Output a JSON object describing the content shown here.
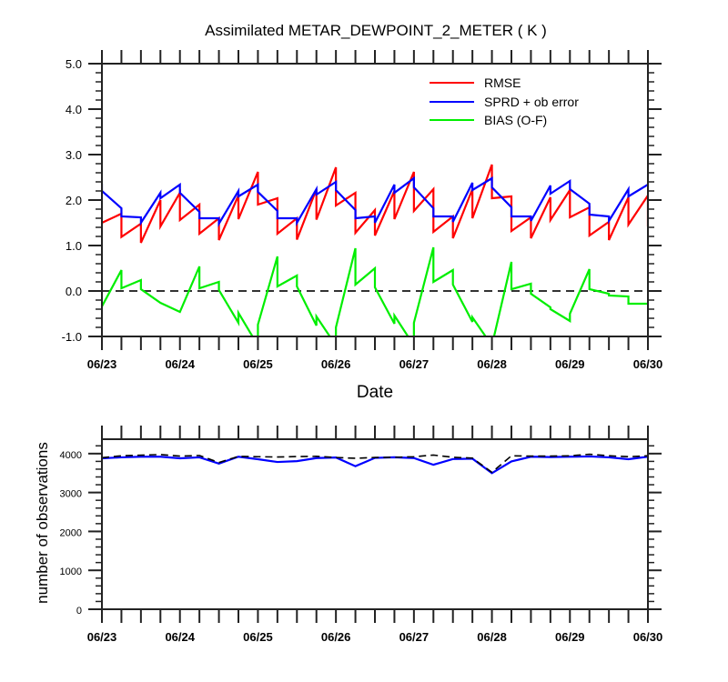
{
  "chart_data": [
    {
      "type": "line",
      "title": "Assimilated METAR_DEWPOINT_2_METER ( K )",
      "xlabel": "Date",
      "ylabel": "",
      "time_step_hours": 6,
      "xtick_labels": [
        "06/23",
        "06/24",
        "06/25",
        "06/26",
        "06/27",
        "06/28",
        "06/29",
        "06/30"
      ],
      "ytick_labels": [
        "5.0",
        "4.0",
        "3.0",
        "2.0",
        "1.0",
        "0.0",
        "-1.0"
      ],
      "ytick_values": [
        5,
        4,
        3,
        2,
        1,
        0,
        -1
      ],
      "ylim": [
        -1,
        5
      ],
      "reference_line": 0,
      "legend_position": "top-right",
      "series": [
        {
          "name": "RMSE",
          "color": "#ff0000",
          "values": [
            [
              1.5,
              1.5
            ],
            [
              1.7,
              1.19
            ],
            [
              1.48,
              1.06
            ],
            [
              2.0,
              1.42
            ],
            [
              2.16,
              1.56
            ],
            [
              1.9,
              1.26
            ],
            [
              1.6,
              1.12
            ],
            [
              2.1,
              1.58
            ],
            [
              2.62,
              1.9
            ],
            [
              2.04,
              1.26
            ],
            [
              1.6,
              1.13
            ],
            [
              2.24,
              1.57
            ],
            [
              2.72,
              1.88
            ],
            [
              2.16,
              1.28
            ],
            [
              1.78,
              1.22
            ],
            [
              2.2,
              1.58
            ],
            [
              2.62,
              1.76
            ],
            [
              2.24,
              1.3
            ],
            [
              1.64,
              1.16
            ],
            [
              2.24,
              1.6
            ],
            [
              2.78,
              2.04
            ],
            [
              2.08,
              1.32
            ],
            [
              1.62,
              1.16
            ],
            [
              2.06,
              1.56
            ],
            [
              2.22,
              1.62
            ],
            [
              1.84,
              1.22
            ],
            [
              1.52,
              1.12
            ],
            [
              2.06,
              1.46
            ],
            [
              2.1,
              1.42
            ]
          ]
        },
        {
          "name": "SPRD + ob error",
          "color": "#0000ff",
          "values": [
            [
              2.36,
              2.2
            ],
            [
              1.82,
              1.64
            ],
            [
              1.62,
              1.5
            ],
            [
              2.16,
              2.04
            ],
            [
              2.34,
              2.16
            ],
            [
              1.74,
              1.6
            ],
            [
              1.6,
              1.48
            ],
            [
              2.2,
              2.08
            ],
            [
              2.34,
              2.18
            ],
            [
              1.76,
              1.6
            ],
            [
              1.6,
              1.5
            ],
            [
              2.24,
              2.12
            ],
            [
              2.4,
              2.22
            ],
            [
              1.78,
              1.6
            ],
            [
              1.64,
              1.5
            ],
            [
              2.34,
              2.16
            ],
            [
              2.48,
              2.28
            ],
            [
              1.82,
              1.64
            ],
            [
              1.64,
              1.52
            ],
            [
              2.38,
              2.22
            ],
            [
              2.48,
              2.28
            ],
            [
              1.84,
              1.64
            ],
            [
              1.64,
              1.54
            ],
            [
              2.32,
              2.14
            ],
            [
              2.42,
              2.24
            ],
            [
              1.92,
              1.68
            ],
            [
              1.64,
              1.54
            ],
            [
              2.24,
              2.08
            ],
            [
              2.34,
              2.34
            ]
          ]
        },
        {
          "name": "BIAS (O-F)",
          "color": "#00ee00",
          "values": [
            [
              -0.34,
              -0.34
            ],
            [
              0.46,
              0.06
            ],
            [
              0.24,
              0.04
            ],
            [
              -0.26,
              -0.26
            ],
            [
              -0.46,
              -0.46
            ],
            [
              0.54,
              0.06
            ],
            [
              0.2,
              0.02
            ],
            [
              -0.7,
              -0.48
            ],
            [
              -1.2,
              -0.74
            ],
            [
              0.76,
              0.1
            ],
            [
              0.34,
              0.1
            ],
            [
              -0.76,
              -0.56
            ],
            [
              -1.2,
              -0.8
            ],
            [
              0.94,
              0.14
            ],
            [
              0.5,
              0.08
            ],
            [
              -0.72,
              -0.54
            ],
            [
              -1.2,
              -0.7
            ],
            [
              0.96,
              0.2
            ],
            [
              0.46,
              0.14
            ],
            [
              -0.68,
              -0.58
            ],
            [
              -1.2,
              -1.2
            ],
            [
              0.64,
              0.04
            ],
            [
              0.16,
              -0.06
            ],
            [
              -0.36,
              -0.4
            ],
            [
              -0.66,
              -0.5
            ],
            [
              0.48,
              0.04
            ],
            [
              -0.06,
              -0.1
            ],
            [
              -0.12,
              -0.28
            ],
            [
              -0.28,
              -0.28
            ]
          ]
        }
      ]
    },
    {
      "type": "line",
      "title": "",
      "xlabel": "",
      "ylabel": "number of observations",
      "time_step_hours": 6,
      "xtick_labels": [
        "06/23",
        "06/24",
        "06/25",
        "06/26",
        "06/27",
        "06/28",
        "06/29",
        "06/30"
      ],
      "ytick_labels": [
        "4000",
        "3000",
        "2000",
        "1000",
        "0"
      ],
      "ytick_values": [
        4000,
        3000,
        2000,
        1000,
        0
      ],
      "ylim": [
        0,
        4370
      ],
      "series": [
        {
          "color": "#0000ff",
          "style": "solid",
          "values": [
            3880,
            3904,
            3920,
            3920,
            3880,
            3904,
            3744,
            3920,
            3856,
            3784,
            3806,
            3885,
            3900,
            3676,
            3890,
            3905,
            3885,
            3713,
            3860,
            3870,
            3497,
            3800,
            3920,
            3912,
            3920,
            3928,
            3904,
            3856,
            3920
          ]
        },
        {
          "color": "#000000",
          "style": "dashed",
          "values": [
            3896,
            3944,
            3960,
            3976,
            3936,
            3952,
            3770,
            3928,
            3920,
            3912,
            3924,
            3930,
            3900,
            3880,
            3900,
            3905,
            3920,
            3963,
            3905,
            3885,
            3520,
            3944,
            3936,
            3936,
            3944,
            3984,
            3944,
            3920,
            3944
          ]
        }
      ]
    }
  ]
}
